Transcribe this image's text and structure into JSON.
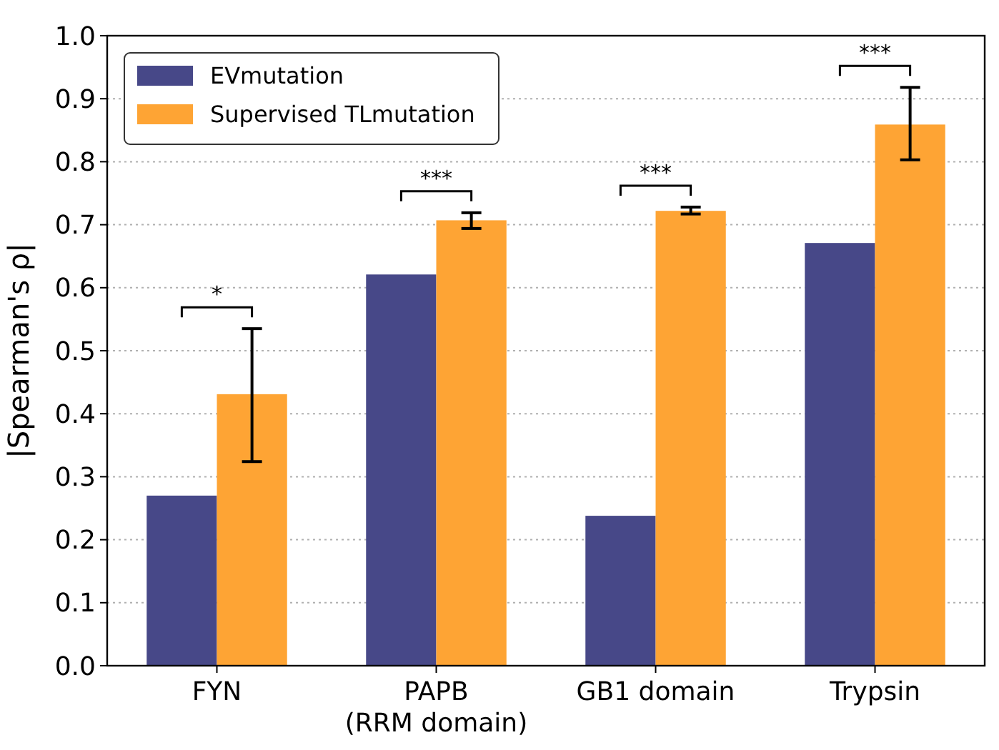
{
  "chart_data": {
    "type": "bar",
    "ylabel": "|Spearman's ρ|",
    "categories": [
      "FYN",
      "PAPB\n(RRM domain)",
      "GB1 domain",
      "Trypsin"
    ],
    "series": [
      {
        "name": "EVmutation",
        "color": "#474888",
        "values": [
          0.27,
          0.621,
          0.238,
          0.671
        ]
      },
      {
        "name": "Supervised TLmutation",
        "color": "#fea434",
        "values": [
          0.431,
          0.707,
          0.722,
          0.859
        ],
        "errors": [
          [
            0.324,
            0.535
          ],
          [
            0.694,
            0.719
          ],
          [
            0.717,
            0.728
          ],
          [
            0.803,
            0.918
          ]
        ]
      }
    ],
    "ylim": [
      0,
      1
    ],
    "yticks": [
      {
        "value": 0,
        "label": "0.0"
      },
      0.1,
      0.2,
      0.3,
      0.4,
      0.5,
      0.6,
      0.7,
      0.8,
      0.9,
      {
        "value": 1,
        "label": "1.0"
      }
    ],
    "grid": "y",
    "legend": "top left",
    "annotations": [
      "*",
      "***",
      "***",
      "***"
    ]
  }
}
